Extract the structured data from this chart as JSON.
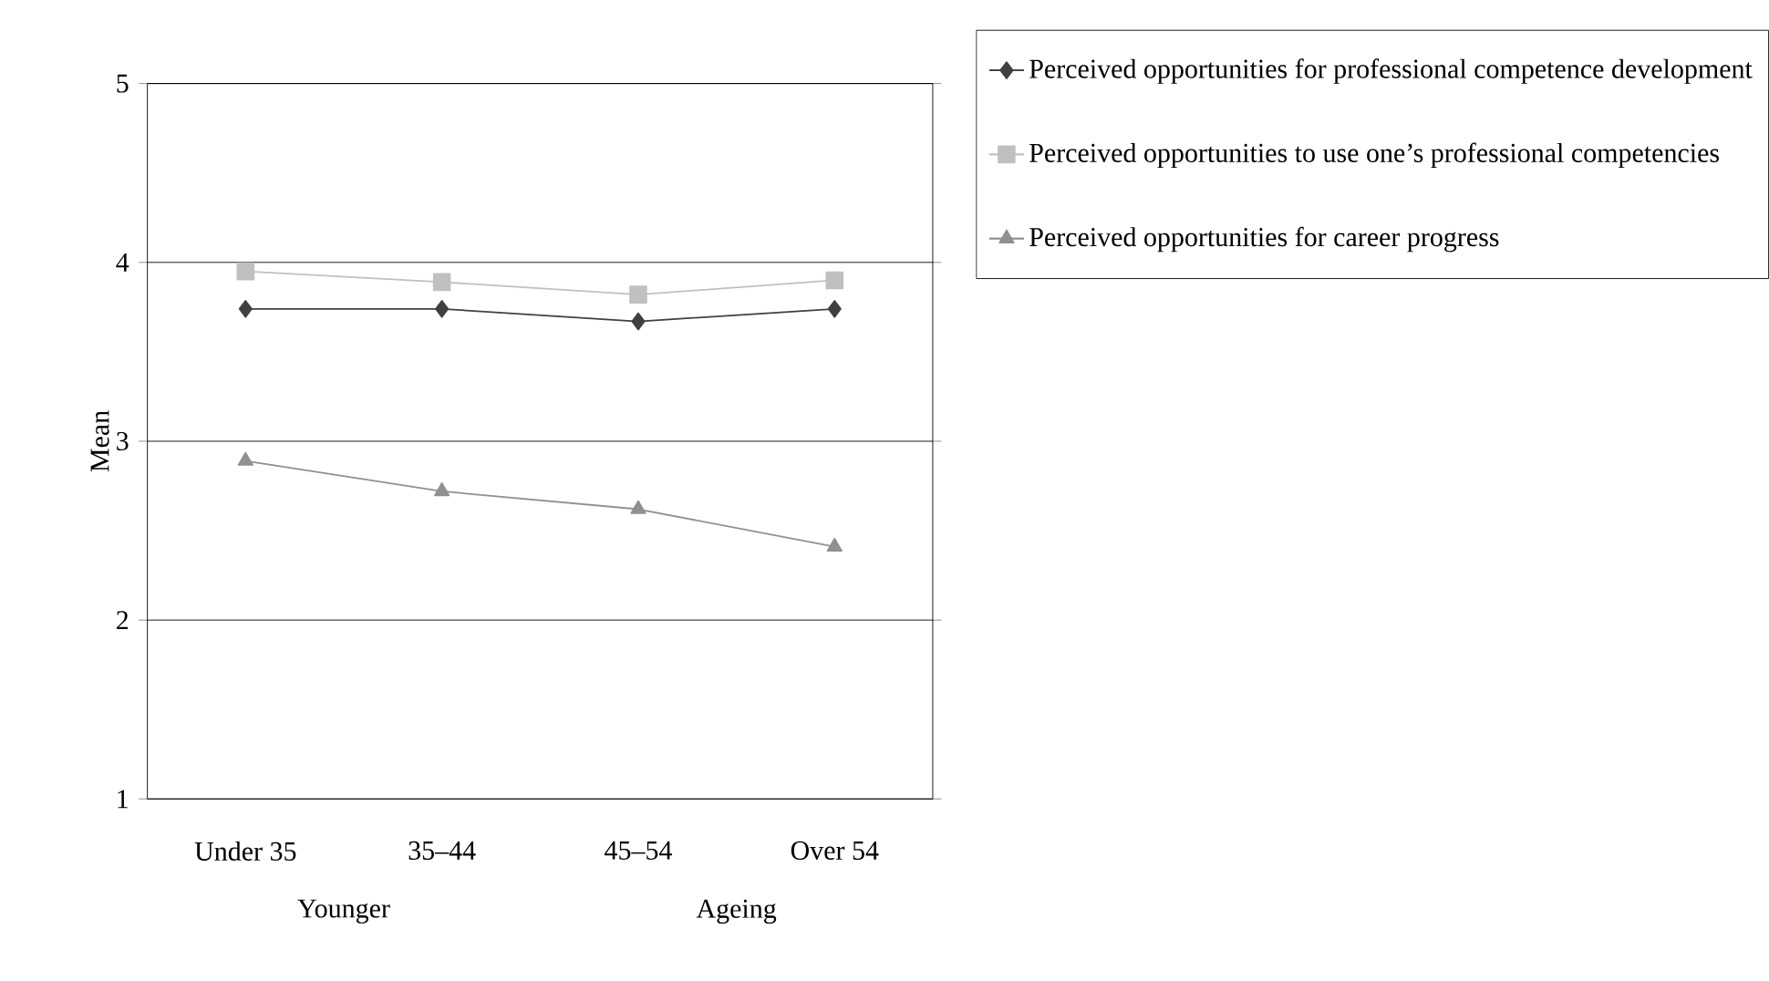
{
  "chart_data": {
    "type": "line",
    "ylabel": "Mean",
    "categories": [
      "Under 35",
      "35–44",
      "45–54",
      "Over 54"
    ],
    "series": [
      {
        "name": "Perceived opportunities for professional competence development",
        "color": "#404040",
        "marker": "diamond",
        "values": [
          3.74,
          3.74,
          3.67,
          3.74
        ]
      },
      {
        "name": "Perceived opportunities to use one’s professional competencies",
        "color": "#c0c0c0",
        "marker": "square",
        "values": [
          3.95,
          3.89,
          3.82,
          3.9
        ]
      },
      {
        "name": "Perceived opportunities for career progress",
        "color": "#909090",
        "marker": "triangle",
        "values": [
          2.89,
          2.72,
          2.62,
          2.41
        ]
      }
    ],
    "ylim": [
      1,
      5
    ],
    "yticks": [
      1,
      2,
      3,
      4,
      5
    ],
    "grid": "y",
    "legend": "right",
    "line_style": "solid",
    "annotations": [
      "Younger",
      "Ageing"
    ]
  }
}
